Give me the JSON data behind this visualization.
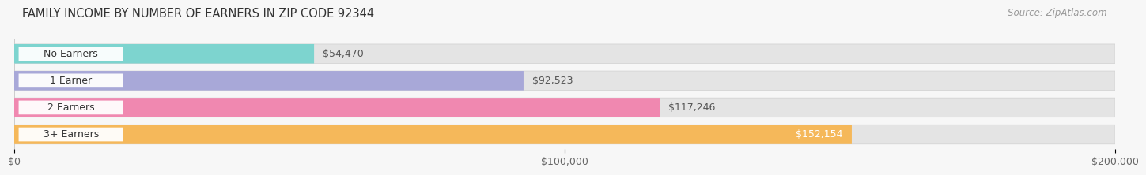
{
  "title": "FAMILY INCOME BY NUMBER OF EARNERS IN ZIP CODE 92344",
  "source": "Source: ZipAtlas.com",
  "categories": [
    "No Earners",
    "1 Earner",
    "2 Earners",
    "3+ Earners"
  ],
  "values": [
    54470,
    92523,
    117246,
    152154
  ],
  "bar_colors": [
    "#7dd4cf",
    "#a8a8d8",
    "#f088b0",
    "#f5b85a"
  ],
  "bar_bg_color": "#e4e4e4",
  "value_labels": [
    "$54,470",
    "$92,523",
    "$117,246",
    "$152,154"
  ],
  "value_label_inside": [
    false,
    false,
    false,
    true
  ],
  "x_ticks": [
    0,
    100000,
    200000
  ],
  "x_tick_labels": [
    "$0",
    "$100,000",
    "$200,000"
  ],
  "xlim": [
    0,
    200000
  ],
  "background_color": "#f7f7f7",
  "title_fontsize": 10.5,
  "source_fontsize": 8.5,
  "tick_fontsize": 9,
  "label_fontsize": 9,
  "value_fontsize": 9,
  "bar_height": 0.72,
  "bar_gap": 0.28
}
